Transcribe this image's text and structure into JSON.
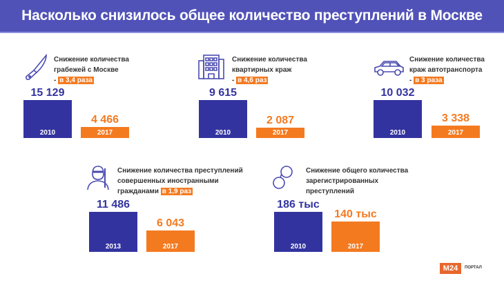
{
  "title": "Насколько снизилось общее количество преступлений в Москве",
  "colors": {
    "header": "#5152b8",
    "blue": "#3333a0",
    "orange": "#f47a20"
  },
  "chart_data": [
    {
      "type": "bar",
      "icon": "knife-icon",
      "desc": [
        "Снижение количества",
        "грабежей с Москве",
        "- "
      ],
      "highlight": "в 3,4 раза",
      "categories": [
        "2010",
        "2017"
      ],
      "values": [
        15129,
        4466
      ],
      "labels": [
        "15 129",
        "4 466"
      ]
    },
    {
      "type": "bar",
      "icon": "building-icon",
      "desc": [
        "Снижение количества",
        "квартирных краж",
        "- "
      ],
      "highlight": "в 4,6 раз",
      "categories": [
        "2010",
        "2017"
      ],
      "values": [
        9615,
        2087
      ],
      "labels": [
        "9 615",
        "2 087"
      ]
    },
    {
      "type": "bar",
      "icon": "car-icon",
      "desc": [
        "Снижение количества",
        "краж автотранспорта",
        "- "
      ],
      "highlight": "в 3 раза",
      "categories": [
        "2010",
        "2017"
      ],
      "values": [
        10032,
        3338
      ],
      "labels": [
        "10 032",
        "3 338"
      ]
    },
    {
      "type": "bar",
      "icon": "masked-person-icon",
      "desc": [
        "Снижение количества преступлений",
        "совершенных иностранными",
        "гражданами "
      ],
      "highlight": "в 1,9 раз",
      "categories": [
        "2013",
        "2017"
      ],
      "values": [
        11486,
        6043
      ],
      "labels": [
        "11 486",
        "6 043"
      ]
    },
    {
      "type": "bar",
      "icon": "handcuffs-icon",
      "desc": [
        "Снижение общего количества",
        "зарегистрированных",
        "преступлений"
      ],
      "highlight": "",
      "categories": [
        "2010",
        "2017"
      ],
      "values": [
        186,
        140
      ],
      "labels": [
        "186 тыс",
        "140 тыс"
      ],
      "unit": "тыс"
    }
  ],
  "logo": {
    "brand": "M24",
    "suffix": "ПОРТАЛ"
  }
}
